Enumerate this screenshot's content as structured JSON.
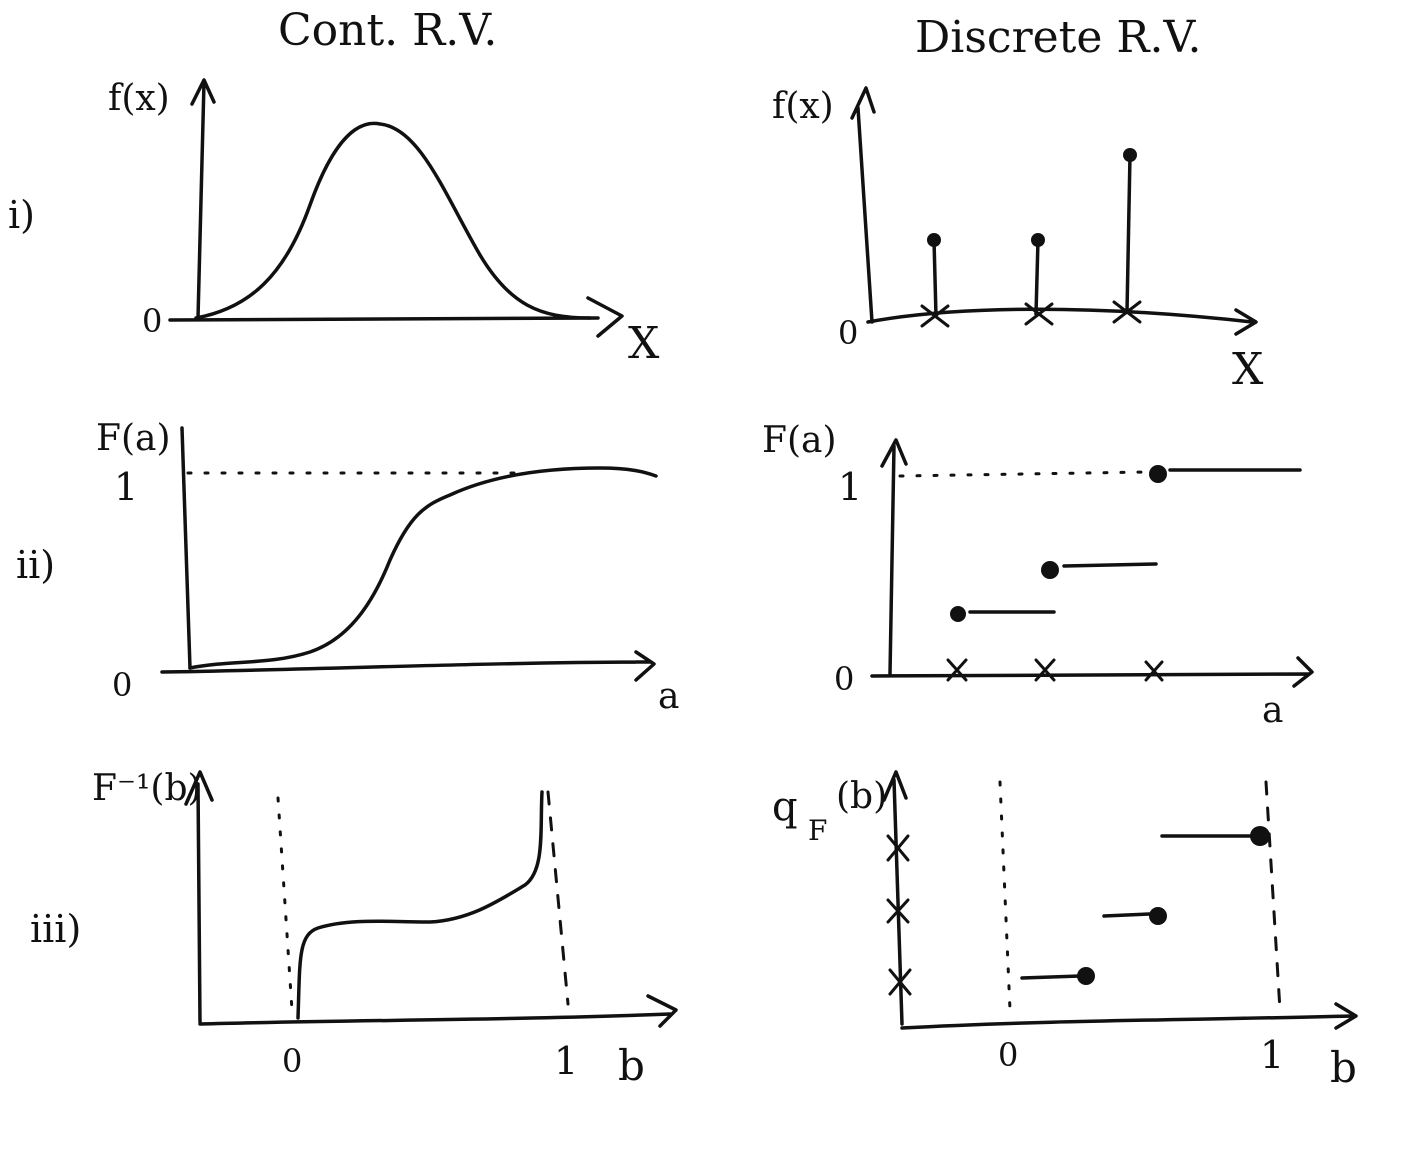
{
  "headers": {
    "continuous": "Cont. R.V.",
    "discrete": "Discrete R.V."
  },
  "row_labels": [
    "i)",
    "ii)",
    "iii)"
  ],
  "panels": {
    "cont_pdf": {
      "ylabel": "f(x)",
      "xlabel": "X",
      "zero": "0"
    },
    "disc_pmf": {
      "ylabel": "f(x)",
      "xlabel": "X",
      "zero": "0"
    },
    "cont_cdf": {
      "ylabel": "F(a)",
      "xlabel": "a",
      "zero": "0",
      "one": "1"
    },
    "disc_cdf": {
      "ylabel": "F(a)",
      "xlabel": "a",
      "zero": "0",
      "one": "1"
    },
    "cont_inv": {
      "ylabel": "F⁻¹(b)",
      "xlabel": "b",
      "zero": "0",
      "one": "1"
    },
    "disc_q": {
      "ylabel": "q",
      "ylabel_sub": "F",
      "ylabel_arg": "(b)",
      "xlabel": "b",
      "zero": "0",
      "one": "1"
    }
  }
}
